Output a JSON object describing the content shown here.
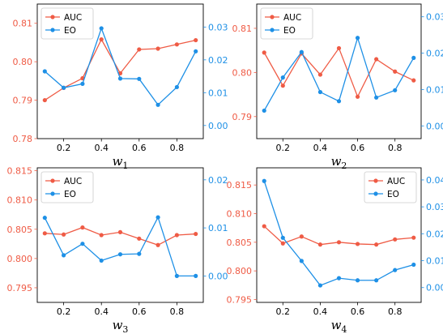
{
  "colors": {
    "left_axis": "#ef5b45",
    "right_axis": "#1e90e6"
  },
  "chart_data": [
    {
      "type": "line",
      "x": [
        0.1,
        0.2,
        0.3,
        0.4,
        0.5,
        0.6,
        0.7,
        0.8,
        0.9
      ],
      "xlabel_base": "w",
      "xlabel_sub": "1",
      "xticks": [
        0.2,
        0.4,
        0.6,
        0.8
      ],
      "xtick_labels": [
        "0.2",
        "0.4",
        "0.6",
        "0.8"
      ],
      "left_axis": {
        "ylim": [
          0.78,
          0.815
        ],
        "ticks": [
          0.78,
          0.79,
          0.8,
          0.81
        ],
        "tick_labels": [
          "0.78",
          "0.79",
          "0.80",
          "0.81"
        ]
      },
      "right_axis": {
        "ylim": [
          -0.004,
          0.037
        ],
        "ticks": [
          0,
          0.01,
          0.02,
          0.03
        ],
        "tick_labels": [
          "0.00",
          "0.01",
          "0.02",
          "0.03"
        ]
      },
      "legend": {
        "position": "upper-left"
      },
      "series": [
        {
          "name": "AUC",
          "axis": "left",
          "color": "#ef5b45",
          "values": [
            0.79,
            0.7932,
            0.7957,
            0.8058,
            0.797,
            0.8032,
            0.8034,
            0.8045,
            0.8056
          ]
        },
        {
          "name": "EO",
          "axis": "right",
          "color": "#1e90e6",
          "values": [
            0.0165,
            0.0115,
            0.0127,
            0.0296,
            0.0143,
            0.0142,
            0.0063,
            0.0117,
            0.0226
          ]
        }
      ]
    },
    {
      "type": "line",
      "x": [
        0.1,
        0.2,
        0.3,
        0.4,
        0.5,
        0.6,
        0.7,
        0.8,
        0.9
      ],
      "xlabel_base": "w",
      "xlabel_sub": "2",
      "xticks": [
        0.2,
        0.4,
        0.6,
        0.8
      ],
      "xtick_labels": [
        "0.2",
        "0.4",
        "0.6",
        "0.8"
      ],
      "left_axis": {
        "ylim": [
          0.785,
          0.8155
        ],
        "ticks": [
          0.79,
          0.8,
          0.81
        ],
        "tick_labels": [
          "0.79",
          "0.80",
          "0.81"
        ]
      },
      "right_axis": {
        "ylim": [
          -0.0035,
          0.0335
        ],
        "ticks": [
          0,
          0.01,
          0.02,
          0.03
        ],
        "tick_labels": [
          "0.00",
          "0.01",
          "0.02",
          "0.03"
        ]
      },
      "legend": {
        "position": "upper-left"
      },
      "series": [
        {
          "name": "AUC",
          "axis": "left",
          "color": "#ef5b45",
          "values": [
            0.8045,
            0.797,
            0.8043,
            0.7995,
            0.8055,
            0.7945,
            0.803,
            0.8002,
            0.7982
          ]
        },
        {
          "name": "EO",
          "axis": "right",
          "color": "#1e90e6",
          "values": [
            0.0042,
            0.0133,
            0.0203,
            0.0093,
            0.0068,
            0.0242,
            0.0078,
            0.0098,
            0.0187
          ]
        }
      ]
    },
    {
      "type": "line",
      "x": [
        0.1,
        0.2,
        0.3,
        0.4,
        0.5,
        0.6,
        0.7,
        0.8,
        0.9
      ],
      "xlabel_base": "w",
      "xlabel_sub": "3",
      "xticks": [
        0.2,
        0.4,
        0.6,
        0.8
      ],
      "xtick_labels": [
        "0.2",
        "0.4",
        "0.6",
        "0.8"
      ],
      "left_axis": {
        "ylim": [
          0.7925,
          0.8155
        ],
        "ticks": [
          0.795,
          0.8,
          0.805,
          0.81,
          0.815
        ],
        "tick_labels": [
          "0.795",
          "0.800",
          "0.805",
          "0.810",
          "0.815"
        ]
      },
      "right_axis": {
        "ylim": [
          -0.0055,
          0.0225
        ],
        "ticks": [
          0,
          0.01,
          0.02
        ],
        "tick_labels": [
          "0.00",
          "0.01",
          "0.02"
        ]
      },
      "legend": {
        "position": "upper-left"
      },
      "series": [
        {
          "name": "AUC",
          "axis": "left",
          "color": "#ef5b45",
          "values": [
            0.8043,
            0.8041,
            0.8053,
            0.804,
            0.8045,
            0.8034,
            0.8023,
            0.804,
            0.8042
          ]
        },
        {
          "name": "EO",
          "axis": "right",
          "color": "#1e90e6",
          "values": [
            0.0121,
            0.0043,
            0.0067,
            0.0032,
            0.0045,
            0.0046,
            0.0122,
            0.0,
            0.0
          ]
        }
      ]
    },
    {
      "type": "line",
      "x": [
        0.1,
        0.2,
        0.3,
        0.4,
        0.5,
        0.6,
        0.7,
        0.8,
        0.9
      ],
      "xlabel_base": "w",
      "xlabel_sub": "4",
      "xticks": [
        0.2,
        0.4,
        0.6,
        0.8
      ],
      "xtick_labels": [
        "0.2",
        "0.4",
        "0.6",
        "0.8"
      ],
      "left_axis": {
        "ylim": [
          0.7945,
          0.818
        ],
        "ticks": [
          0.795,
          0.8,
          0.805,
          0.81,
          0.815
        ],
        "tick_labels": [
          "0.795",
          "0.800",
          "0.805",
          "0.810",
          "0.815"
        ]
      },
      "right_axis": {
        "ylim": [
          -0.0055,
          0.0445
        ],
        "ticks": [
          0,
          0.01,
          0.02,
          0.03,
          0.04
        ],
        "tick_labels": [
          "0.00",
          "0.01",
          "0.02",
          "0.03",
          "0.04"
        ]
      },
      "legend": {
        "position": "upper-right"
      },
      "series": [
        {
          "name": "AUC",
          "axis": "left",
          "color": "#ef5b45",
          "values": [
            0.8078,
            0.8048,
            0.806,
            0.8046,
            0.805,
            0.8047,
            0.8046,
            0.8055,
            0.8058
          ]
        },
        {
          "name": "EO",
          "axis": "right",
          "color": "#1e90e6",
          "values": [
            0.0396,
            0.0185,
            0.0099,
            0.0008,
            0.0035,
            0.0027,
            0.0027,
            0.0065,
            0.0085
          ]
        }
      ]
    }
  ]
}
